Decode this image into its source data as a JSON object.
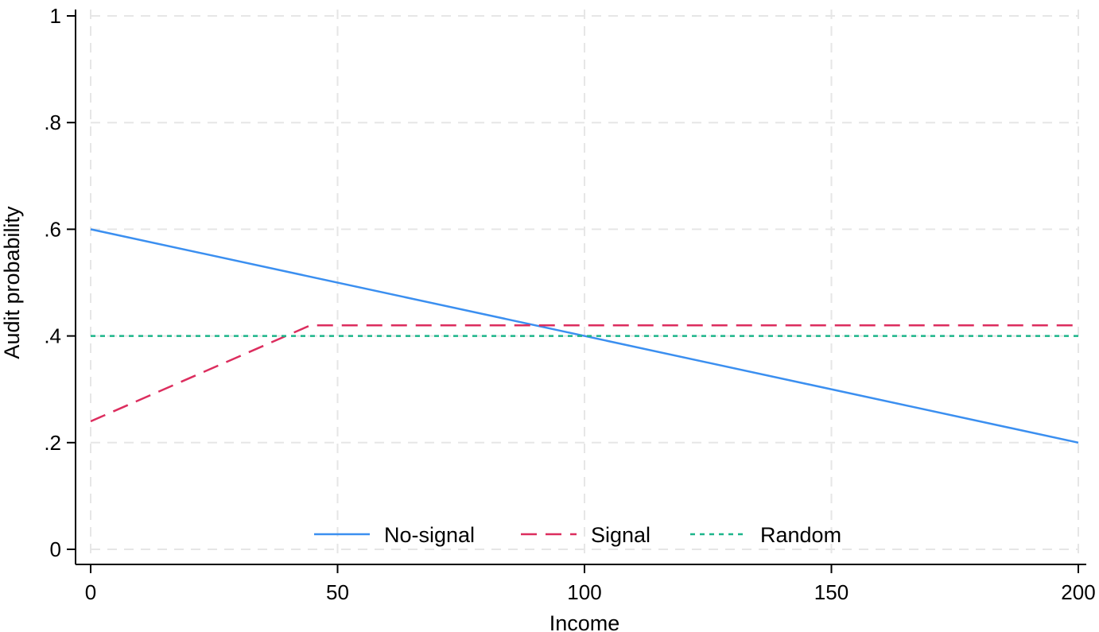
{
  "chart_data": {
    "type": "line",
    "title": "",
    "xlabel": "Income",
    "ylabel": "Audit probability",
    "xlim": [
      0,
      200
    ],
    "ylim": [
      0,
      1
    ],
    "x_ticks": [
      0,
      50,
      100,
      150,
      200
    ],
    "x_tick_labels": [
      "0",
      "50",
      "100",
      "150",
      "200"
    ],
    "y_ticks": [
      0,
      0.2,
      0.4,
      0.6,
      0.8,
      1
    ],
    "y_tick_labels": [
      "0",
      ".2",
      ".4",
      ".6",
      ".8",
      "1"
    ],
    "grid": true,
    "legend_position": "bottom",
    "series": [
      {
        "name": "No-signal",
        "color": "#3b8ff0",
        "dash": "solid",
        "x": [
          0,
          200
        ],
        "y": [
          0.6,
          0.2
        ]
      },
      {
        "name": "Signal",
        "color": "#dc2d5e",
        "dash": "dashed",
        "x": [
          0,
          44.5,
          200
        ],
        "y": [
          0.24,
          0.42,
          0.42
        ]
      },
      {
        "name": "Random",
        "color": "#1cb58a",
        "dash": "dotted",
        "x": [
          0,
          200
        ],
        "y": [
          0.4,
          0.4
        ]
      }
    ]
  }
}
